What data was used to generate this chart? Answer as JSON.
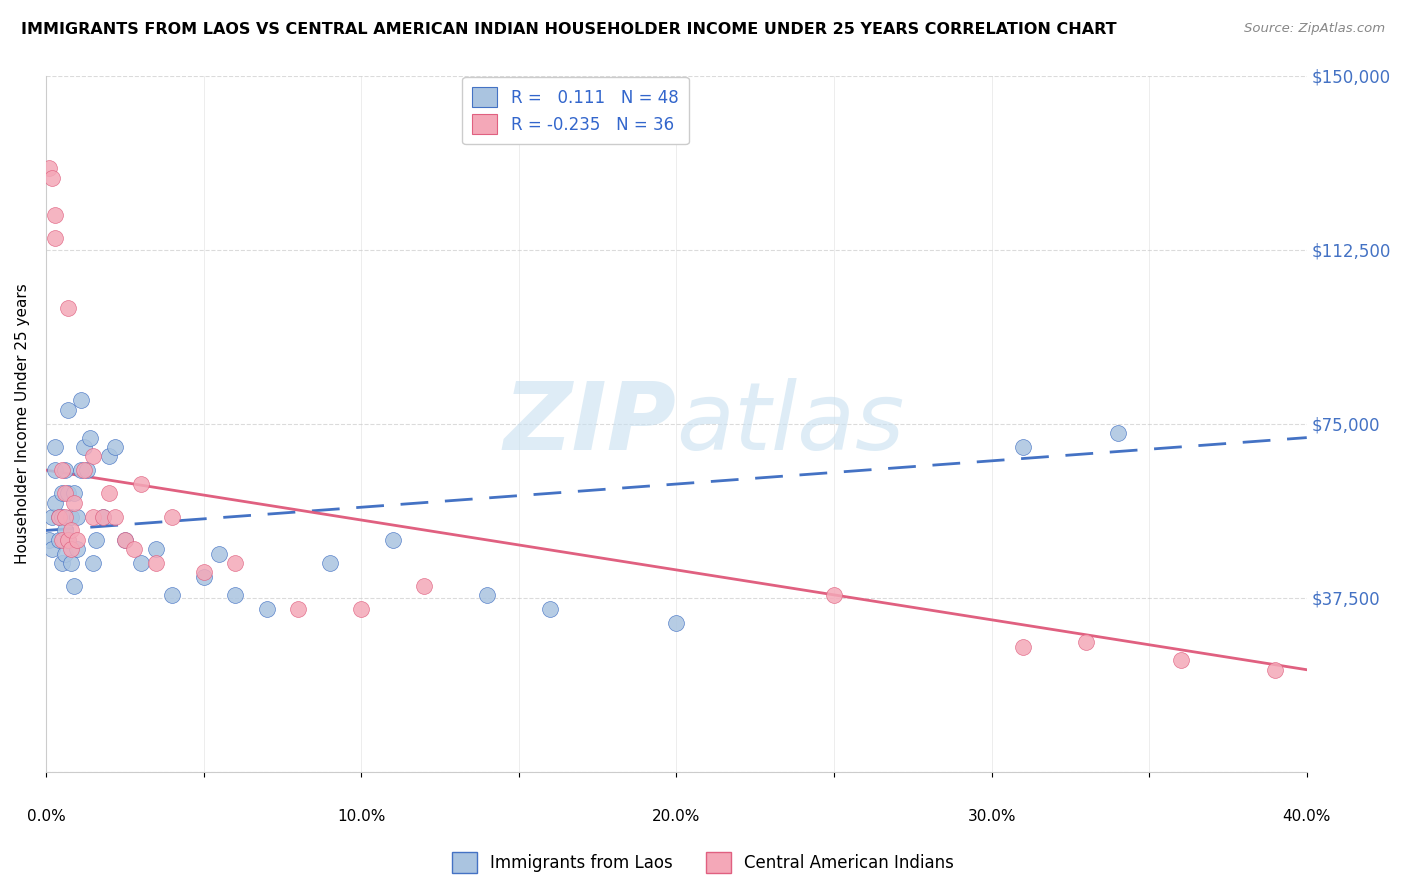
{
  "title": "IMMIGRANTS FROM LAOS VS CENTRAL AMERICAN INDIAN HOUSEHOLDER INCOME UNDER 25 YEARS CORRELATION CHART",
  "source": "Source: ZipAtlas.com",
  "ylabel": "Householder Income Under 25 years",
  "xlabel": "",
  "watermark_ZIP": "ZIP",
  "watermark_atlas": "atlas",
  "blue_R": 0.111,
  "blue_N": 48,
  "pink_R": -0.235,
  "pink_N": 36,
  "blue_color": "#aac4e0",
  "pink_color": "#f4a8b8",
  "blue_line_color": "#4472c4",
  "pink_line_color": "#e06080",
  "blue_label": "Immigrants from Laos",
  "pink_label": "Central American Indians",
  "ylim": [
    0,
    150000
  ],
  "xlim": [
    0.0,
    0.4
  ],
  "yticks": [
    0,
    37500,
    75000,
    112500,
    150000
  ],
  "ytick_labels": [
    "",
    "$37,500",
    "$75,000",
    "$112,500",
    "$150,000"
  ],
  "xticks": [
    0.0,
    0.05,
    0.1,
    0.15,
    0.2,
    0.25,
    0.3,
    0.35,
    0.4
  ],
  "xtick_labels_minor": [
    "",
    "",
    "",
    "",
    "",
    "",
    "",
    "",
    ""
  ],
  "xtick_labels_major": [
    "0.0%",
    "10.0%",
    "20.0%",
    "30.0%",
    "40.0%"
  ],
  "xticks_major": [
    0.0,
    0.1,
    0.2,
    0.3,
    0.4
  ],
  "blue_line_x": [
    0.0,
    0.4
  ],
  "blue_line_y": [
    52000,
    72000
  ],
  "pink_line_x": [
    0.0,
    0.4
  ],
  "pink_line_y": [
    65000,
    22000
  ],
  "blue_x": [
    0.001,
    0.002,
    0.002,
    0.003,
    0.003,
    0.003,
    0.004,
    0.004,
    0.005,
    0.005,
    0.005,
    0.006,
    0.006,
    0.006,
    0.007,
    0.007,
    0.007,
    0.008,
    0.008,
    0.009,
    0.009,
    0.01,
    0.01,
    0.011,
    0.011,
    0.012,
    0.013,
    0.014,
    0.015,
    0.016,
    0.018,
    0.02,
    0.022,
    0.025,
    0.03,
    0.035,
    0.04,
    0.05,
    0.055,
    0.06,
    0.07,
    0.09,
    0.11,
    0.14,
    0.16,
    0.2,
    0.31,
    0.34
  ],
  "blue_y": [
    50000,
    55000,
    48000,
    65000,
    70000,
    58000,
    55000,
    50000,
    45000,
    60000,
    55000,
    52000,
    47000,
    65000,
    78000,
    60000,
    50000,
    55000,
    45000,
    60000,
    40000,
    48000,
    55000,
    65000,
    80000,
    70000,
    65000,
    72000,
    45000,
    50000,
    55000,
    68000,
    70000,
    50000,
    45000,
    48000,
    38000,
    42000,
    47000,
    38000,
    35000,
    45000,
    50000,
    38000,
    35000,
    32000,
    70000,
    73000
  ],
  "pink_x": [
    0.001,
    0.002,
    0.003,
    0.003,
    0.004,
    0.005,
    0.005,
    0.006,
    0.006,
    0.007,
    0.007,
    0.008,
    0.008,
    0.009,
    0.01,
    0.012,
    0.015,
    0.015,
    0.018,
    0.02,
    0.022,
    0.025,
    0.028,
    0.03,
    0.035,
    0.04,
    0.05,
    0.06,
    0.08,
    0.1,
    0.12,
    0.25,
    0.31,
    0.33,
    0.36,
    0.39
  ],
  "pink_y": [
    130000,
    128000,
    120000,
    115000,
    55000,
    50000,
    65000,
    60000,
    55000,
    100000,
    50000,
    48000,
    52000,
    58000,
    50000,
    65000,
    68000,
    55000,
    55000,
    60000,
    55000,
    50000,
    48000,
    62000,
    45000,
    55000,
    43000,
    45000,
    35000,
    35000,
    40000,
    38000,
    27000,
    28000,
    24000,
    22000
  ]
}
